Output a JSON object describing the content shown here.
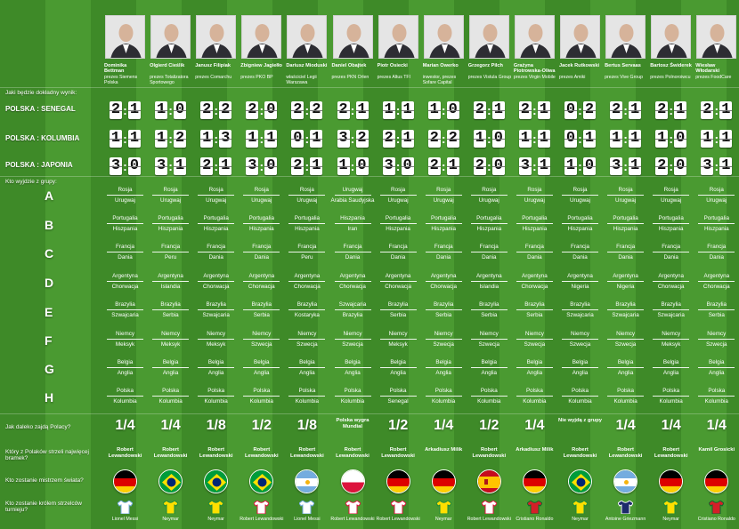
{
  "labels": {
    "q_score": "Jaki będzie dokładny wynik:",
    "match1": "POLSKA : SENEGAL",
    "match2": "POLSKA : KOLUMBIA",
    "match3": "POLSKA : JAPONIA",
    "q_groups": "Kto wyjdzie z grupy:",
    "groups": [
      "A",
      "B",
      "C",
      "D",
      "E",
      "F",
      "G",
      "H"
    ],
    "q_far": "Jak daleko zajdą Polacy?",
    "q_scorer": "Który z Polaków strzeli najwięcej bramek?",
    "q_champion": "Kto zostanie mistrzem świata?",
    "q_king": "Kto zostanie królem strzelców turnieju?"
  },
  "colors": {
    "Niemcy": "#d40000",
    "Brazylia": "#ffdf00",
    "Argentyna": "#74acdf",
    "Polska": "#dc143c",
    "Hiszpania": "#c60b1e",
    "Francja": "#0055a4"
  },
  "experts": [
    {
      "name": "Dominika Bettman",
      "role": "prezes Siemens Polska",
      "scores": [
        "2:1",
        "1:1",
        "3:0"
      ],
      "groups": [
        [
          "Rosja",
          "Urugwaj"
        ],
        [
          "Portugalia",
          "Hiszpania"
        ],
        [
          "Francja",
          "Dania"
        ],
        [
          "Argentyna",
          "Chorwacja"
        ],
        [
          "Brazylia",
          "Szwajcaria"
        ],
        [
          "Niemcy",
          "Meksyk"
        ],
        [
          "Belgia",
          "Anglia"
        ],
        [
          "Polska",
          "Kolumbia"
        ]
      ],
      "far": "1/4",
      "scorer": "Robert Lewandowski",
      "champion": "Niemcy",
      "king": "Lionel Messi",
      "shirt": "Argentyna"
    },
    {
      "name": "Olgierd Cieślik",
      "role": "prezes Totalizatora Sportowego",
      "scores": [
        "1:0",
        "1:2",
        "3:1"
      ],
      "groups": [
        [
          "Rosja",
          "Urugwaj"
        ],
        [
          "Portugalia",
          "Hiszpania"
        ],
        [
          "Francja",
          "Peru"
        ],
        [
          "Argentyna",
          "Islandia"
        ],
        [
          "Brazylia",
          "Serbia"
        ],
        [
          "Niemcy",
          "Meksyk"
        ],
        [
          "Belgia",
          "Anglia"
        ],
        [
          "Polska",
          "Kolumbia"
        ]
      ],
      "far": "1/4",
      "scorer": "Robert Lewandowski",
      "champion": "Brazylia",
      "king": "Neymar",
      "shirt": "Brazylia"
    },
    {
      "name": "Janusz Filipiak",
      "role": "prezes Comarchu",
      "scores": [
        "2:2",
        "1:3",
        "2:1"
      ],
      "groups": [
        [
          "Rosja",
          "Urugwaj"
        ],
        [
          "Portugalia",
          "Hiszpania"
        ],
        [
          "Francja",
          "Dania"
        ],
        [
          "Argentyna",
          "Chorwacja"
        ],
        [
          "Brazylia",
          "Szwajcaria"
        ],
        [
          "Niemcy",
          "Meksyk"
        ],
        [
          "Belgia",
          "Anglia"
        ],
        [
          "Polska",
          "Kolumbia"
        ]
      ],
      "far": "1/8",
      "scorer": "Robert Lewandowski",
      "champion": "Brazylia",
      "king": "Neymar",
      "shirt": "Brazylia"
    },
    {
      "name": "Zbigniew Jagiełło",
      "role": "prezes PKO BP",
      "scores": [
        "2:0",
        "1:1",
        "3:0"
      ],
      "groups": [
        [
          "Rosja",
          "Urugwaj"
        ],
        [
          "Portugalia",
          "Hiszpania"
        ],
        [
          "Francja",
          "Dania"
        ],
        [
          "Argentyna",
          "Chorwacja"
        ],
        [
          "Brazylia",
          "Serbia"
        ],
        [
          "Niemcy",
          "Szwecja"
        ],
        [
          "Belgia",
          "Anglia"
        ],
        [
          "Polska",
          "Kolumbia"
        ]
      ],
      "far": "1/2",
      "scorer": "Robert Lewandowski",
      "champion": "Brazylia",
      "king": "Robert Lewandowski",
      "shirt": "Polska"
    },
    {
      "name": "Dariusz Mioduski",
      "role": "właściciel Legii Warszawa",
      "scores": [
        "2:2",
        "0:1",
        "2:1"
      ],
      "groups": [
        [
          "Rosja",
          "Urugwaj"
        ],
        [
          "Portugalia",
          "Hiszpania"
        ],
        [
          "Francja",
          "Peru"
        ],
        [
          "Argentyna",
          "Chorwacja"
        ],
        [
          "Brazylia",
          "Kostaryka"
        ],
        [
          "Niemcy",
          "Szwecja"
        ],
        [
          "Belgia",
          "Anglia"
        ],
        [
          "Polska",
          "Kolumbia"
        ]
      ],
      "far": "1/8",
      "scorer": "Robert Lewandowski",
      "champion": "Argentyna",
      "king": "Lionel Messi",
      "shirt": "Argentyna"
    },
    {
      "name": "Daniel Obajtek",
      "role": "prezes PKN Orlen",
      "scores": [
        "2:1",
        "3:2",
        "1:0"
      ],
      "groups": [
        [
          "Urugwaj",
          "Arabia Saudyjska"
        ],
        [
          "Hiszpania",
          "Iran"
        ],
        [
          "Francja",
          "Dania"
        ],
        [
          "Argentyna",
          "Chorwacja"
        ],
        [
          "Szwajcaria",
          "Brazylia"
        ],
        [
          "Niemcy",
          "Szwecja"
        ],
        [
          "Belgia",
          "Anglia"
        ],
        [
          "Polska",
          "Kolumbia"
        ]
      ],
      "far": "Polska wygra Mundial",
      "scorer": "Robert Lewandowski",
      "champion": "Polska",
      "king": "Robert Lewandowski",
      "shirt": "Polska"
    },
    {
      "name": "Piotr Osiecki",
      "role": "prezes Altus TFI",
      "scores": [
        "1:1",
        "2:1",
        "3:0"
      ],
      "groups": [
        [
          "Rosja",
          "Urugwaj"
        ],
        [
          "Portugalia",
          "Hiszpania"
        ],
        [
          "Francja",
          "Dania"
        ],
        [
          "Argentyna",
          "Chorwacja"
        ],
        [
          "Brazylia",
          "Serbia"
        ],
        [
          "Niemcy",
          "Meksyk"
        ],
        [
          "Belgia",
          "Anglia"
        ],
        [
          "Polska",
          "Senegal"
        ]
      ],
      "far": "1/2",
      "scorer": "Robert Lewandowski",
      "champion": "Niemcy",
      "king": "Robert Lewandowski",
      "shirt": "Polska"
    },
    {
      "name": "Marian Owerko",
      "role": "inwestor, prezes Sofare Capital",
      "scores": [
        "1:0",
        "2:2",
        "2:1"
      ],
      "groups": [
        [
          "Rosja",
          "Urugwaj"
        ],
        [
          "Portugalia",
          "Hiszpania"
        ],
        [
          "Francja",
          "Dania"
        ],
        [
          "Argentyna",
          "Chorwacja"
        ],
        [
          "Brazylia",
          "Serbia"
        ],
        [
          "Niemcy",
          "Szwecja"
        ],
        [
          "Belgia",
          "Anglia"
        ],
        [
          "Polska",
          "Kolumbia"
        ]
      ],
      "far": "1/4",
      "scorer": "Arkadiusz Milik",
      "champion": "Niemcy",
      "king": "Neymar",
      "shirt": "Brazylia"
    },
    {
      "name": "Grzegorz Pilch",
      "role": "prezes Vistula Group",
      "scores": [
        "2:1",
        "1:0",
        "2:0"
      ],
      "groups": [
        [
          "Rosja",
          "Urugwaj"
        ],
        [
          "Portugalia",
          "Hiszpania"
        ],
        [
          "Francja",
          "Dania"
        ],
        [
          "Argentyna",
          "Islandia"
        ],
        [
          "Brazylia",
          "Serbia"
        ],
        [
          "Niemcy",
          "Szwecja"
        ],
        [
          "Belgia",
          "Anglia"
        ],
        [
          "Polska",
          "Kolumbia"
        ]
      ],
      "far": "1/2",
      "scorer": "Robert Lewandowski",
      "champion": "Hiszpania",
      "king": "Robert Lewandowski",
      "shirt": "Polska"
    },
    {
      "name": "Grażyna Piotrowska-Oliwa",
      "role": "prezes Virgin Mobile",
      "scores": [
        "2:1",
        "1:1",
        "3:1"
      ],
      "groups": [
        [
          "Rosja",
          "Urugwaj"
        ],
        [
          "Portugalia",
          "Hiszpania"
        ],
        [
          "Francja",
          "Dania"
        ],
        [
          "Argentyna",
          "Chorwacja"
        ],
        [
          "Brazylia",
          "Serbia"
        ],
        [
          "Niemcy",
          "Szwecja"
        ],
        [
          "Belgia",
          "Anglia"
        ],
        [
          "Polska",
          "Kolumbia"
        ]
      ],
      "far": "1/4",
      "scorer": "Arkadiusz Milik",
      "champion": "Niemcy",
      "king": "Cristiano Ronaldo",
      "shirt": "Portugalia"
    },
    {
      "name": "Jacek Rutkowski",
      "role": "prezes Amiki",
      "scores": [
        "0:2",
        "0:1",
        "1:0"
      ],
      "groups": [
        [
          "Rosja",
          "Urugwaj"
        ],
        [
          "Portugalia",
          "Hiszpania"
        ],
        [
          "Francja",
          "Dania"
        ],
        [
          "Argentyna",
          "Nigeria"
        ],
        [
          "Brazylia",
          "Szwajcaria"
        ],
        [
          "Niemcy",
          "Szwecja"
        ],
        [
          "Belgia",
          "Anglia"
        ],
        [
          "Polska",
          "Kolumbia"
        ]
      ],
      "far": "Nie wyjdą z grupy",
      "scorer": "Robert Lewandowski",
      "champion": "Brazylia",
      "king": "Neymar",
      "shirt": "Brazylia"
    },
    {
      "name": "Bertus Servaas",
      "role": "prezes Vive Group",
      "scores": [
        "2:1",
        "1:1",
        "3:1"
      ],
      "groups": [
        [
          "Rosja",
          "Urugwaj"
        ],
        [
          "Portugalia",
          "Hiszpania"
        ],
        [
          "Francja",
          "Dania"
        ],
        [
          "Argentyna",
          "Nigeria"
        ],
        [
          "Brazylia",
          "Szwajcaria"
        ],
        [
          "Niemcy",
          "Szwecja"
        ],
        [
          "Belgia",
          "Anglia"
        ],
        [
          "Polska",
          "Kolumbia"
        ]
      ],
      "far": "1/4",
      "scorer": "Robert Lewandowski",
      "champion": "Argentyna",
      "king": "Antoine Griezmann",
      "shirt": "Francja"
    },
    {
      "name": "Bartosz Świderek",
      "role": "prezes Polnoroiwcu",
      "scores": [
        "2:1",
        "1:0",
        "2:0"
      ],
      "groups": [
        [
          "Rosja",
          "Urugwaj"
        ],
        [
          "Portugalia",
          "Hiszpania"
        ],
        [
          "Francja",
          "Dania"
        ],
        [
          "Argentyna",
          "Chorwacja"
        ],
        [
          "Brazylia",
          "Szwajcaria"
        ],
        [
          "Niemcy",
          "Meksyk"
        ],
        [
          "Belgia",
          "Anglia"
        ],
        [
          "Polska",
          "Kolumbia"
        ]
      ],
      "far": "1/4",
      "scorer": "Robert Lewandowski",
      "champion": "Niemcy",
      "king": "Neymar",
      "shirt": "Brazylia"
    },
    {
      "name": "Wiesław Włodarski",
      "role": "prezes FoodCare",
      "scores": [
        "2:1",
        "1:1",
        "3:1"
      ],
      "groups": [
        [
          "Rosja",
          "Urugwaj"
        ],
        [
          "Portugalia",
          "Hiszpania"
        ],
        [
          "Francja",
          "Dania"
        ],
        [
          "Argentyna",
          "Chorwacja"
        ],
        [
          "Brazylia",
          "Serbia"
        ],
        [
          "Niemcy",
          "Szwecja"
        ],
        [
          "Belgia",
          "Anglia"
        ],
        [
          "Polska",
          "Kolumbia"
        ]
      ],
      "far": "1/4",
      "scorer": "Kamil Grosicki",
      "champion": "Niemcy",
      "king": "Cristiano Ronaldo",
      "shirt": "Portugalia"
    }
  ]
}
